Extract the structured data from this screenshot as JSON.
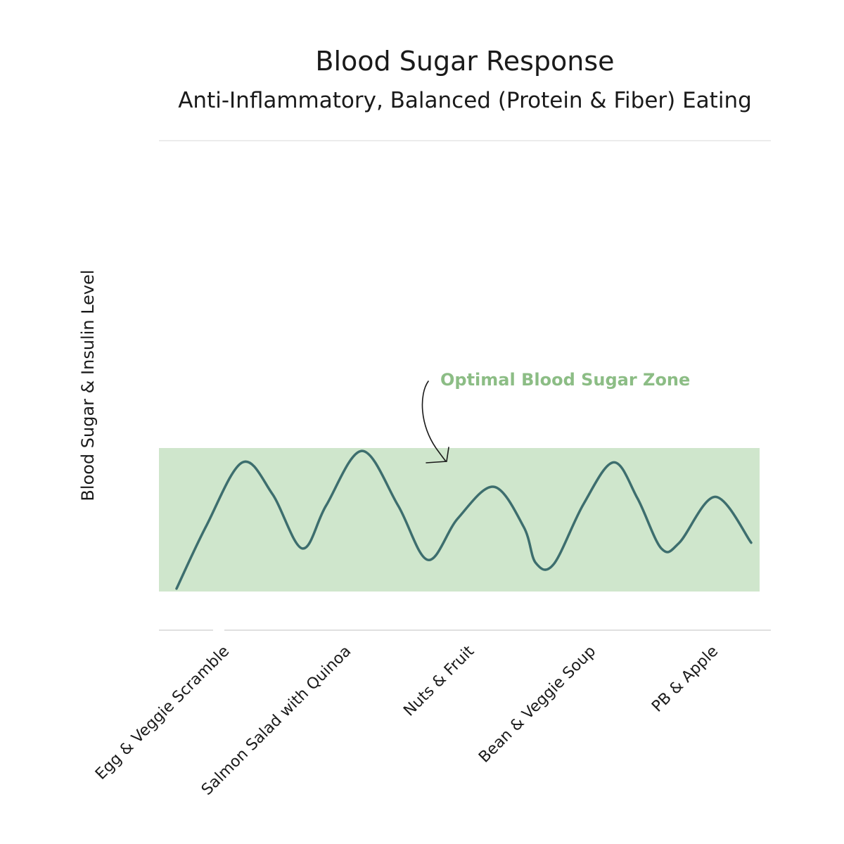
{
  "chart_data": {
    "type": "line",
    "title": "Blood Sugar Response",
    "subtitle": "Anti-Inflammatory, Balanced (Protein & Fiber) Eating",
    "ylabel": "Blood Sugar & Insulin Level",
    "xlabel": "",
    "categories": [
      "Egg & Veggie Scramble",
      "Salmon Salad with Quinoa",
      "Nuts & Fruit",
      "Bean & Veggie Soup",
      "PB & Apple"
    ],
    "annotation": "Optimal Blood Sugar Zone",
    "ylim": [
      0,
      100
    ],
    "zone": [
      0,
      100
    ],
    "series": [
      {
        "values": [
          [
            0,
            2
          ],
          [
            0.25,
            46
          ],
          [
            0.55,
            90
          ],
          [
            0.8,
            68
          ],
          [
            1.05,
            30
          ],
          [
            1.25,
            60
          ],
          [
            1.55,
            98
          ],
          [
            1.85,
            60
          ],
          [
            2.1,
            22
          ],
          [
            2.35,
            51
          ],
          [
            2.65,
            73
          ],
          [
            2.9,
            45
          ],
          [
            3.0,
            20
          ],
          [
            3.15,
            19
          ],
          [
            3.4,
            61
          ],
          [
            3.65,
            90
          ],
          [
            3.85,
            65
          ],
          [
            4.05,
            30
          ],
          [
            4.2,
            34
          ],
          [
            4.5,
            66
          ],
          [
            4.8,
            34
          ]
        ]
      }
    ],
    "colors": {
      "line": "#3d6e6e",
      "zone": "#cfe6cc",
      "zone_label": "#8cbd85",
      "axis": "#d6d6d6"
    }
  }
}
